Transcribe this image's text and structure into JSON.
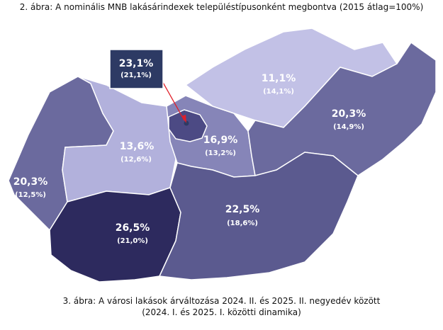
{
  "top_caption": "2. ábra: A nominális MNB lakásárindexek településtípusonként megbontva (2015 átlag=100%)",
  "bottom_caption_line1": "3. ábra: A városi lakások árváltozása 2024. II. és 2025. II. negyedév között",
  "bottom_caption_line2": "(2024. I. és 2025. I. közötti dinamika)",
  "regions": [
    {
      "id": "west",
      "value": "20,3%",
      "previous": "(12,5%)",
      "color": "#6b6a9e"
    },
    {
      "id": "north-west",
      "value": "13,6%",
      "previous": "(12,6%)",
      "color": "#b2b1dc"
    },
    {
      "id": "south-west",
      "value": "26,5%",
      "previous": "(21,0%)",
      "color": "#2d2a5e"
    },
    {
      "id": "central",
      "value": "16,9%",
      "previous": "(13,2%)",
      "color": "#8685b8"
    },
    {
      "id": "north-east",
      "value": "11,1%",
      "previous": "(14,1%)",
      "color": "#c2c1e6"
    },
    {
      "id": "east",
      "value": "20,3%",
      "previous": "(14,9%)",
      "color": "#6b6a9e"
    },
    {
      "id": "south-east",
      "value": "22,5%",
      "previous": "(18,6%)",
      "color": "#5b5a8f"
    },
    {
      "id": "budapest",
      "value": "23,1%",
      "previous": "(21,1%)",
      "color": "#4c4a84"
    }
  ],
  "callout_color": "#2d3a64"
}
